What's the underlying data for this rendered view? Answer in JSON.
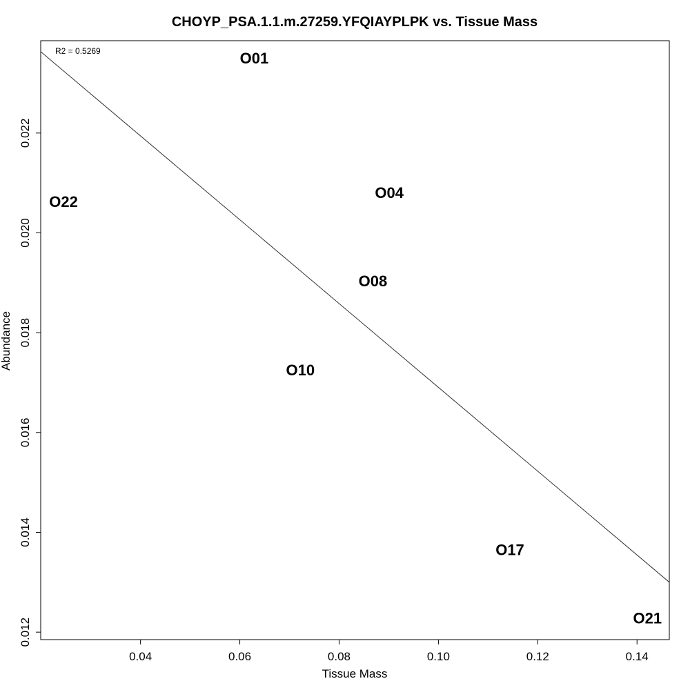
{
  "chart_data": {
    "type": "scatter",
    "title": "CHOYP_PSA.1.1.m.27259.YFQIAYPLPK vs. Tissue Mass",
    "xlabel": "Tissue Mass",
    "ylabel": "Abundance",
    "annotation": "R2 = 0.5269",
    "xlim": [
      0.0199,
      0.1465
    ],
    "ylim": [
      0.01185,
      0.02385
    ],
    "x_ticks": [
      {
        "value": 0.04,
        "label": "0.04"
      },
      {
        "value": 0.06,
        "label": "0.06"
      },
      {
        "value": 0.08,
        "label": "0.08"
      },
      {
        "value": 0.1,
        "label": "0.10"
      },
      {
        "value": 0.12,
        "label": "0.12"
      },
      {
        "value": 0.14,
        "label": "0.14"
      }
    ],
    "y_ticks": [
      {
        "value": 0.012,
        "label": "0.012"
      },
      {
        "value": 0.014,
        "label": "0.014"
      },
      {
        "value": 0.016,
        "label": "0.016"
      },
      {
        "value": 0.018,
        "label": "0.018"
      },
      {
        "value": 0.02,
        "label": "0.020"
      },
      {
        "value": 0.022,
        "label": "0.022"
      }
    ],
    "points": [
      {
        "label": "O01",
        "x": 0.0629,
        "y": 0.0235
      },
      {
        "label": "O22",
        "x": 0.0245,
        "y": 0.02062
      },
      {
        "label": "O04",
        "x": 0.0901,
        "y": 0.0208
      },
      {
        "label": "O08",
        "x": 0.0868,
        "y": 0.01903
      },
      {
        "label": "O10",
        "x": 0.0722,
        "y": 0.01725
      },
      {
        "label": "O17",
        "x": 0.1144,
        "y": 0.01365
      },
      {
        "label": "O21",
        "x": 0.1421,
        "y": 0.01228
      }
    ],
    "fit_line": {
      "x1": 0.0199,
      "y1": 0.02363,
      "x2": 0.1465,
      "y2": 0.013
    }
  }
}
